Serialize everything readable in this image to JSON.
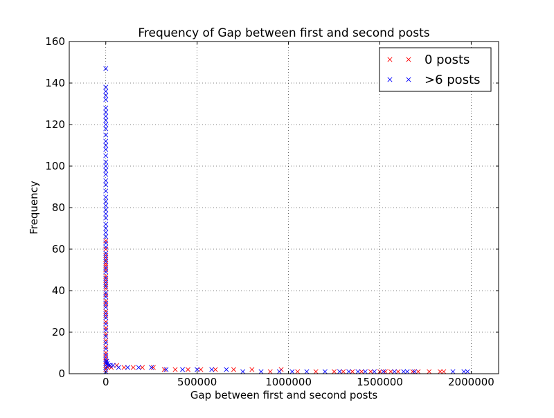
{
  "chart_data": {
    "type": "scatter",
    "title": "Frequency of Gap between first and second posts",
    "xlabel": "Gap between first and second posts",
    "ylabel": "Frequency",
    "xlim": [
      -200000,
      2150000
    ],
    "ylim": [
      0,
      160
    ],
    "xticks": [
      0,
      500000,
      1000000,
      1500000,
      2000000
    ],
    "xtick_labels": [
      "0",
      "500000",
      "1000000",
      "1500000",
      "2000000"
    ],
    "yticks": [
      0,
      20,
      40,
      60,
      80,
      100,
      120,
      140,
      160
    ],
    "ytick_labels": [
      "0",
      "20",
      "40",
      "60",
      "80",
      "100",
      "120",
      "140",
      "160"
    ],
    "grid": true,
    "legend_position": "top-right",
    "marker": "x",
    "series": [
      {
        "name": "0 posts",
        "color": "#ff0000",
        "points": [
          [
            0,
            64
          ],
          [
            0,
            60
          ],
          [
            0,
            57
          ],
          [
            0,
            55
          ],
          [
            0,
            53
          ],
          [
            0,
            52
          ],
          [
            0,
            50
          ],
          [
            0,
            47
          ],
          [
            0,
            45
          ],
          [
            0,
            43
          ],
          [
            0,
            41
          ],
          [
            0,
            38
          ],
          [
            0,
            35
          ],
          [
            0,
            33
          ],
          [
            0,
            30
          ],
          [
            0,
            28
          ],
          [
            0,
            25
          ],
          [
            0,
            22
          ],
          [
            0,
            19
          ],
          [
            0,
            16
          ],
          [
            0,
            13
          ],
          [
            0,
            10
          ],
          [
            0,
            8
          ],
          [
            0,
            6
          ],
          [
            0,
            4
          ],
          [
            0,
            2
          ],
          [
            10000,
            3
          ],
          [
            30000,
            3
          ],
          [
            60000,
            4
          ],
          [
            100000,
            3
          ],
          [
            150000,
            3
          ],
          [
            200000,
            3
          ],
          [
            260000,
            3
          ],
          [
            320000,
            2
          ],
          [
            380000,
            2
          ],
          [
            450000,
            2
          ],
          [
            520000,
            2
          ],
          [
            600000,
            2
          ],
          [
            700000,
            2
          ],
          [
            800000,
            2
          ],
          [
            900000,
            1
          ],
          [
            960000,
            2
          ],
          [
            1050000,
            1
          ],
          [
            1150000,
            1
          ],
          [
            1250000,
            1
          ],
          [
            1300000,
            1
          ],
          [
            1350000,
            1
          ],
          [
            1400000,
            1
          ],
          [
            1450000,
            1
          ],
          [
            1500000,
            1
          ],
          [
            1530000,
            1
          ],
          [
            1560000,
            1
          ],
          [
            1600000,
            1
          ],
          [
            1680000,
            1
          ],
          [
            1710000,
            1
          ],
          [
            1770000,
            1
          ],
          [
            1830000,
            1
          ],
          [
            1850000,
            1
          ]
        ]
      },
      {
        "name": ">6 posts",
        "color": "#0000ff",
        "points": [
          [
            0,
            147
          ],
          [
            0,
            138
          ],
          [
            0,
            136
          ],
          [
            0,
            134
          ],
          [
            0,
            132
          ],
          [
            0,
            128
          ],
          [
            0,
            126
          ],
          [
            0,
            124
          ],
          [
            0,
            122
          ],
          [
            0,
            120
          ],
          [
            0,
            118
          ],
          [
            0,
            115
          ],
          [
            0,
            112
          ],
          [
            0,
            110
          ],
          [
            0,
            108
          ],
          [
            0,
            105
          ],
          [
            0,
            102
          ],
          [
            0,
            100
          ],
          [
            0,
            98
          ],
          [
            0,
            96
          ],
          [
            0,
            93
          ],
          [
            0,
            91
          ],
          [
            0,
            88
          ],
          [
            0,
            85
          ],
          [
            0,
            83
          ],
          [
            0,
            81
          ],
          [
            0,
            79
          ],
          [
            0,
            77
          ],
          [
            0,
            75
          ],
          [
            0,
            72
          ],
          [
            0,
            70
          ],
          [
            0,
            68
          ],
          [
            0,
            66
          ],
          [
            0,
            63
          ],
          [
            0,
            61
          ],
          [
            0,
            58
          ],
          [
            0,
            56
          ],
          [
            0,
            54
          ],
          [
            0,
            51
          ],
          [
            0,
            49
          ],
          [
            0,
            46
          ],
          [
            0,
            44
          ],
          [
            0,
            42
          ],
          [
            0,
            39
          ],
          [
            0,
            37
          ],
          [
            0,
            34
          ],
          [
            0,
            32
          ],
          [
            0,
            29
          ],
          [
            0,
            27
          ],
          [
            0,
            24
          ],
          [
            0,
            21
          ],
          [
            0,
            18
          ],
          [
            0,
            15
          ],
          [
            0,
            12
          ],
          [
            0,
            9
          ],
          [
            0,
            7
          ],
          [
            0,
            5
          ],
          [
            0,
            3
          ],
          [
            0,
            1
          ],
          [
            5000,
            6
          ],
          [
            8000,
            5
          ],
          [
            15000,
            4
          ],
          [
            25000,
            4
          ],
          [
            40000,
            4
          ],
          [
            70000,
            3
          ],
          [
            120000,
            3
          ],
          [
            180000,
            3
          ],
          [
            250000,
            3
          ],
          [
            330000,
            2
          ],
          [
            420000,
            2
          ],
          [
            500000,
            2
          ],
          [
            580000,
            2
          ],
          [
            660000,
            2
          ],
          [
            750000,
            1
          ],
          [
            850000,
            1
          ],
          [
            950000,
            1
          ],
          [
            1020000,
            1
          ],
          [
            1100000,
            1
          ],
          [
            1200000,
            1
          ],
          [
            1280000,
            1
          ],
          [
            1330000,
            1
          ],
          [
            1380000,
            1
          ],
          [
            1420000,
            1
          ],
          [
            1470000,
            1
          ],
          [
            1520000,
            1
          ],
          [
            1580000,
            1
          ],
          [
            1630000,
            1
          ],
          [
            1650000,
            1
          ],
          [
            1690000,
            1
          ],
          [
            1900000,
            1
          ],
          [
            1960000,
            1
          ],
          [
            1980000,
            1
          ]
        ]
      }
    ]
  }
}
